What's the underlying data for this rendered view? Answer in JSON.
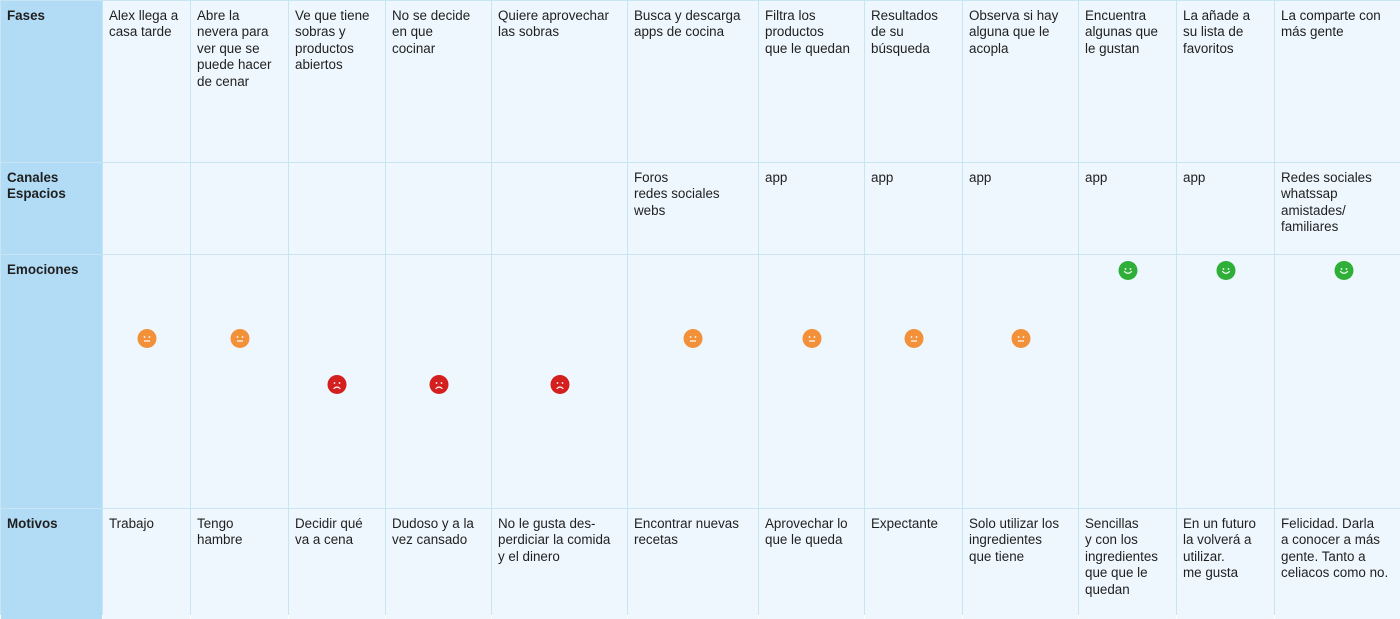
{
  "row_labels": {
    "fases": "Fases",
    "canales": "Canales\nEspacios",
    "emociones": "Emociones",
    "motivos": "Motivos"
  },
  "columns": [
    {
      "fase": "Alex llega a\ncasa tarde",
      "canal": "",
      "emocion": "neutral",
      "motivo": "Trabajo"
    },
    {
      "fase": "Abre la\nnevera para\nver que se\npuede hacer\nde cenar",
      "canal": "",
      "emocion": "neutral",
      "motivo": "Tengo\nhambre"
    },
    {
      "fase": "Ve que tiene\nsobras y\nproductos\nabiertos",
      "canal": "",
      "emocion": "sad",
      "motivo": "Decidir qué\nva a cena"
    },
    {
      "fase": "No se decide\nen que\ncocinar",
      "canal": "",
      "emocion": "sad",
      "motivo": "Dudoso y a la\nvez cansado"
    },
    {
      "fase": "Quiere aprovechar\nlas sobras",
      "canal": "",
      "emocion": "sad",
      "motivo": "No le gusta des-\nperdiciar la comida\ny el dinero"
    },
    {
      "fase": "Busca y descarga\napps de cocina",
      "canal": "Foros\nredes sociales\nwebs",
      "emocion": "neutral",
      "motivo": "Encontrar nuevas\nrecetas"
    },
    {
      "fase": "Filtra los\nproductos\nque le quedan",
      "canal": "app",
      "emocion": "neutral",
      "motivo": "Aprovechar lo\nque le queda"
    },
    {
      "fase": "Resultados\nde su\nbúsqueda",
      "canal": "app",
      "emocion": "neutral",
      "motivo": "Expectante"
    },
    {
      "fase": "Observa si hay\nalguna que le\nacopla",
      "canal": "app",
      "emocion": "neutral",
      "motivo": "Solo utilizar los\ningredientes\nque tiene"
    },
    {
      "fase": "Encuentra\nalgunas que\nle gustan",
      "canal": "app",
      "emocion": "happy",
      "motivo": "Sencillas\ny con los\ningredientes\nque que le\nquedan"
    },
    {
      "fase": "La añade a\nsu lista de\nfavoritos",
      "canal": "app",
      "emocion": "happy",
      "motivo": "En un futuro\nla volverá a\nutilizar.\nme gusta"
    },
    {
      "fase": "La comparte con\nmás gente",
      "canal": "Redes sociales\nwhatssap\namistades/\nfamiliares",
      "emocion": "happy",
      "motivo": "Felicidad. Darla\na conocer a más\ngente. Tanto a\nceliacos como no."
    }
  ],
  "colors": {
    "header_bg": "#b2dcf5",
    "cell_bg": "#eef7fd",
    "grid_line": "#c9e4f2",
    "happy": "#2fae38",
    "neutral": "#f2913a",
    "sad": "#d41f1f"
  },
  "icons": {
    "happy": "happy-face-icon",
    "neutral": "neutral-face-icon",
    "sad": "sad-face-icon"
  }
}
